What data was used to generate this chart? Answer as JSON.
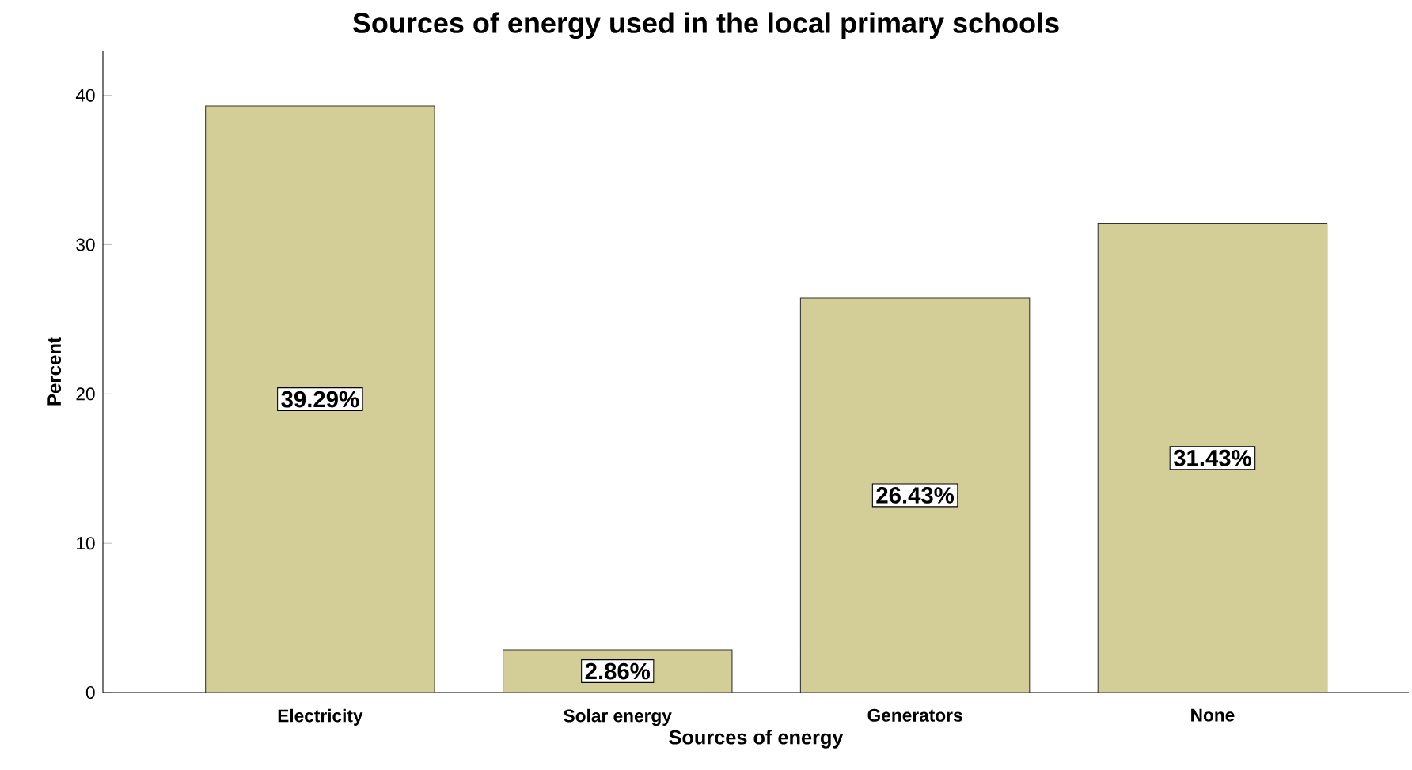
{
  "chart_data": {
    "type": "bar",
    "title": "Sources of energy used in the local primary schools",
    "xlabel": "Sources of energy",
    "ylabel": "Percent",
    "categories": [
      "Electricity",
      "Solar energy",
      "Generators",
      "None"
    ],
    "values": [
      39.29,
      2.86,
      26.43,
      31.43
    ],
    "value_labels": [
      "39.29%",
      "2.86%",
      "26.43%",
      "31.43%"
    ],
    "color": "#d3ce97",
    "ylim": [
      0,
      43
    ],
    "yticks": [
      0,
      10,
      20,
      30,
      40
    ],
    "grid": false
  }
}
